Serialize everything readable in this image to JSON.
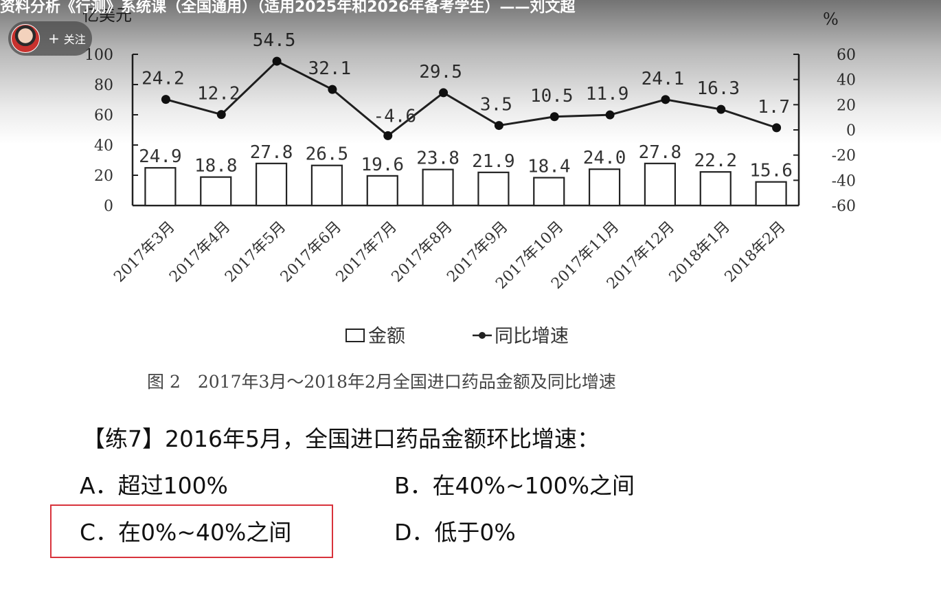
{
  "video": {
    "title": "资料分析《行测》系统课（全国通用）（适用2025年和2026年备考学生）——刘文超",
    "follow_label": "关注"
  },
  "chart_data": {
    "type": "bar+line",
    "categories": [
      "2017年3月",
      "2017年4月",
      "2017年5月",
      "2017年6月",
      "2017年7月",
      "2017年8月",
      "2017年9月",
      "2017年10月",
      "2017年11月",
      "2017年12月",
      "2018年1月",
      "2018年2月"
    ],
    "series": [
      {
        "name": "金额",
        "type": "bar",
        "axis": "left",
        "values": [
          24.9,
          18.8,
          27.8,
          26.5,
          19.6,
          23.8,
          21.9,
          18.4,
          24.0,
          27.8,
          22.2,
          15.6
        ],
        "labels": [
          "24.9",
          "18.8",
          "27.8",
          "26.5",
          "19.6",
          "23.8",
          "21.9",
          "18.4",
          "24.0",
          "27.8",
          "22.2",
          "15.6"
        ]
      },
      {
        "name": "同比增速",
        "type": "line",
        "axis": "right",
        "values": [
          24.2,
          12.2,
          54.5,
          32.1,
          -4.6,
          29.5,
          3.5,
          10.5,
          11.9,
          24.1,
          16.3,
          1.7
        ],
        "labels": [
          "24.2",
          "12.2",
          "54.5",
          "32.1",
          "-4.6",
          "29.5",
          "3.5",
          "10.5",
          "11.9",
          "24.1",
          "16.3",
          "1.7"
        ]
      }
    ],
    "left_axis": {
      "unit": "亿美元",
      "ylim": [
        0,
        100
      ],
      "ticks": [
        0,
        20,
        40,
        60,
        80,
        100
      ],
      "tick_labels": [
        "0",
        "20",
        "40",
        "60",
        "80",
        "100"
      ]
    },
    "right_axis": {
      "unit": "%",
      "ylim": [
        -60,
        60
      ],
      "ticks": [
        -60,
        -40,
        -20,
        0,
        20,
        40,
        60
      ],
      "tick_labels": [
        "-60",
        "-40",
        "-20",
        "0",
        "20",
        "40",
        "60"
      ]
    },
    "legend": {
      "placement": "bottom",
      "items": [
        "金额",
        "同比增速"
      ]
    },
    "caption": "图 2　2017年3月～2018年2月全国进口药品金额及同比增速"
  },
  "question": {
    "text": "【练7】2016年5月，全国进口药品金额环比增速：",
    "options": [
      {
        "key": "A",
        "text": "A．超过100%"
      },
      {
        "key": "B",
        "text": "B．在40%~100%之间"
      },
      {
        "key": "C",
        "text": "C．在0%~40%之间"
      },
      {
        "key": "D",
        "text": "D．低于0%"
      }
    ],
    "highlight_color": "#d8323b"
  }
}
